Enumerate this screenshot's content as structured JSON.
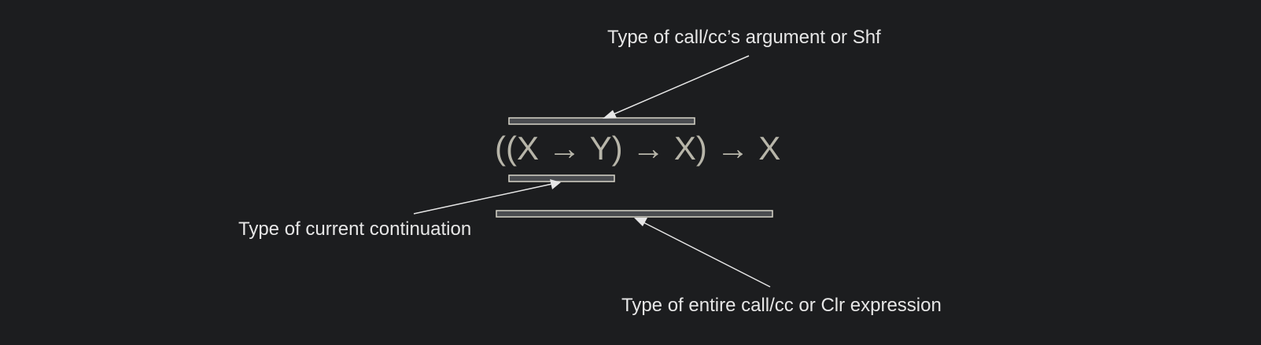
{
  "formula": "((X → Y) → X) → X",
  "annotations": {
    "argument": "Type of call/cc’s argument or Shf",
    "continuation": "Type of current continuation",
    "entire": "Type of entire call/cc or Clr expression"
  }
}
